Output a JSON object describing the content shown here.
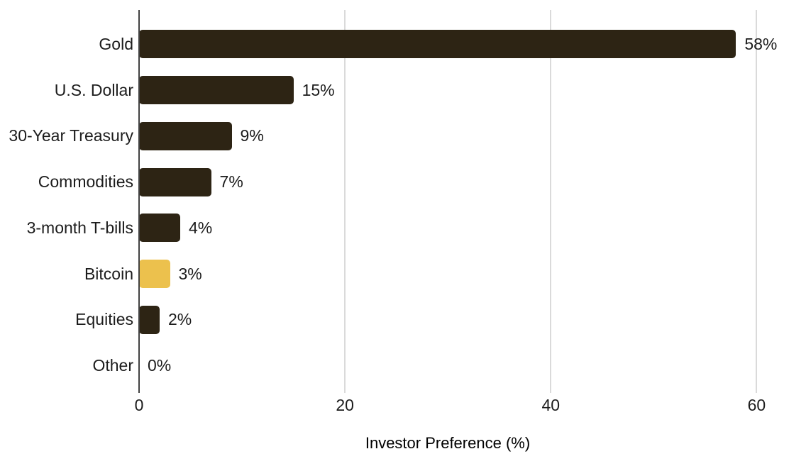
{
  "chart_data": {
    "type": "bar",
    "orientation": "horizontal",
    "title": "",
    "xlabel": "Investor Preference (%)",
    "categories": [
      "Gold",
      "U.S. Dollar",
      "30-Year Treasury",
      "Commodities",
      "3-month T-bills",
      "Bitcoin",
      "Equities",
      "Other"
    ],
    "values": [
      58,
      15,
      9,
      7,
      4,
      3,
      2,
      0
    ],
    "value_labels": [
      "58%",
      "15%",
      "9%",
      "7%",
      "4%",
      "3%",
      "2%",
      "0%"
    ],
    "highlight_category": "Bitcoin",
    "xticks": [
      0,
      20,
      40,
      60
    ],
    "xtick_labels": [
      "0",
      "20",
      "40",
      "60"
    ],
    "xlim": [
      0,
      64.8
    ],
    "grid": true,
    "legend": "none",
    "colors": {
      "bar_default": "#2D2414",
      "bar_highlight": "#ECC14D",
      "axis_line": "#424242",
      "gridline": "#DADADA",
      "text": "#1C1C1C",
      "background": "#FFFFFF"
    }
  }
}
